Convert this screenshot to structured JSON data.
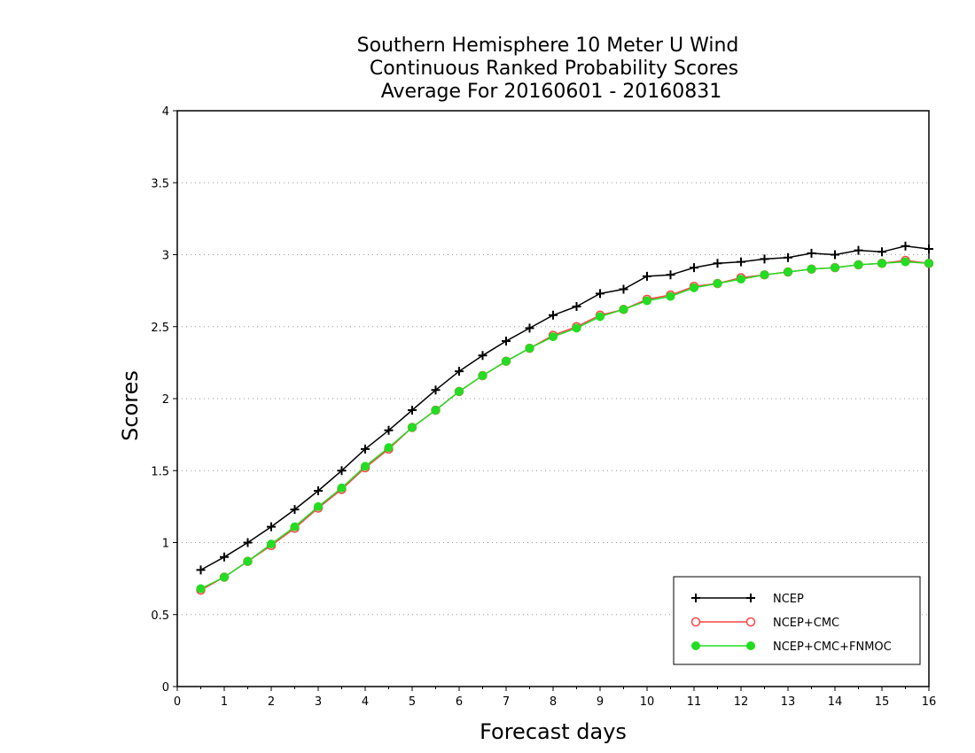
{
  "chart_data": {
    "type": "line",
    "title_lines": [
      "Southern Hemisphere 10 Meter U Wind",
      "Continuous Ranked Probability Scores",
      "Average For 20160601 - 20160831"
    ],
    "xlabel": "Forecast days",
    "ylabel": "Scores",
    "xlim": [
      0,
      16
    ],
    "ylim": [
      0,
      4
    ],
    "xticks": [
      "0",
      "1",
      "2",
      "3",
      "4",
      "5",
      "6",
      "7",
      "8",
      "9",
      "10",
      "11",
      "12",
      "13",
      "14",
      "15",
      "16"
    ],
    "yticks": [
      "0",
      "0.5",
      "1",
      "1.5",
      "2",
      "2.5",
      "3",
      "3.5",
      "4"
    ],
    "grid": true,
    "legend_position": "bottom-right",
    "x": [
      0.5,
      1,
      1.5,
      2,
      2.5,
      3,
      3.5,
      4,
      4.5,
      5,
      5.5,
      6,
      6.5,
      7,
      7.5,
      8,
      8.5,
      9,
      9.5,
      10,
      10.5,
      11,
      11.5,
      12,
      12.5,
      13,
      13.5,
      14,
      14.5,
      15,
      15.5,
      16
    ],
    "series": [
      {
        "name": "NCEP",
        "color": "#000000",
        "marker": "plus",
        "values": [
          0.81,
          0.9,
          1.0,
          1.11,
          1.23,
          1.36,
          1.5,
          1.65,
          1.78,
          1.92,
          2.06,
          2.19,
          2.3,
          2.4,
          2.49,
          2.58,
          2.64,
          2.73,
          2.76,
          2.85,
          2.86,
          2.91,
          2.94,
          2.95,
          2.97,
          2.98,
          3.01,
          3.0,
          3.03,
          3.02,
          3.06,
          3.04
        ]
      },
      {
        "name": "NCEP+CMC",
        "color": "#ff4444",
        "marker": "open-circle",
        "values": [
          0.67,
          0.76,
          0.87,
          0.98,
          1.1,
          1.24,
          1.37,
          1.52,
          1.65,
          1.8,
          1.92,
          2.05,
          2.16,
          2.26,
          2.35,
          2.44,
          2.5,
          2.58,
          2.62,
          2.69,
          2.72,
          2.78,
          2.8,
          2.84,
          2.86,
          2.88,
          2.9,
          2.91,
          2.93,
          2.94,
          2.96,
          2.94
        ]
      },
      {
        "name": "NCEP+CMC+FNMOC",
        "color": "#22dd22",
        "marker": "filled-circle",
        "values": [
          0.68,
          0.76,
          0.87,
          0.99,
          1.11,
          1.25,
          1.38,
          1.53,
          1.66,
          1.8,
          1.92,
          2.05,
          2.16,
          2.26,
          2.35,
          2.43,
          2.49,
          2.57,
          2.62,
          2.68,
          2.71,
          2.77,
          2.8,
          2.83,
          2.86,
          2.88,
          2.9,
          2.91,
          2.93,
          2.94,
          2.95,
          2.94
        ]
      }
    ]
  }
}
